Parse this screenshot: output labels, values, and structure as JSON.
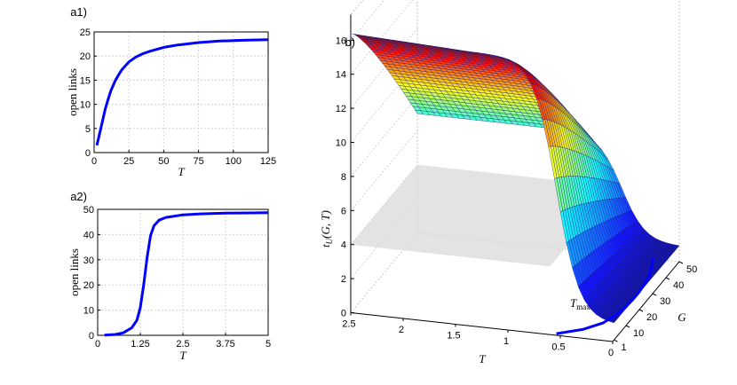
{
  "chart_data": [
    {
      "id": "a1",
      "type": "line",
      "panel_label": "a1)",
      "xlabel": "T",
      "ylabel": "open links",
      "xlim": [
        0,
        125
      ],
      "ylim": [
        0,
        25
      ],
      "xticks": [
        "0",
        "25",
        "50",
        "75",
        "100",
        "125"
      ],
      "yticks": [
        "0",
        "5",
        "10",
        "15",
        "20",
        "25"
      ],
      "grid": true,
      "series": [
        {
          "name": "open links",
          "color": "#0000ff",
          "x": [
            2,
            5,
            8,
            10,
            12,
            15,
            18,
            20,
            25,
            30,
            35,
            40,
            50,
            60,
            75,
            90,
            100,
            110,
            125
          ],
          "y": [
            1.5,
            5.2,
            9.0,
            11.0,
            12.8,
            14.8,
            16.3,
            17.2,
            18.8,
            19.8,
            20.5,
            21.0,
            21.8,
            22.3,
            22.8,
            23.1,
            23.2,
            23.3,
            23.4
          ]
        }
      ]
    },
    {
      "id": "a2",
      "type": "line",
      "panel_label": "a2)",
      "xlabel": "T",
      "ylabel": "open links",
      "xlim": [
        0,
        5
      ],
      "ylim": [
        0,
        50
      ],
      "xticks": [
        "0",
        "1.25",
        "2.5",
        "3.75",
        "5"
      ],
      "yticks": [
        "0",
        "10",
        "20",
        "30",
        "40",
        "50"
      ],
      "grid": true,
      "series": [
        {
          "name": "open links",
          "color": "#0000ff",
          "x": [
            0.2,
            0.5,
            0.75,
            1.0,
            1.15,
            1.25,
            1.35,
            1.45,
            1.55,
            1.65,
            1.8,
            2.0,
            2.5,
            3.0,
            3.75,
            4.5,
            5.0
          ],
          "y": [
            0.1,
            0.3,
            1.0,
            3.0,
            6.0,
            11.0,
            20.0,
            31.0,
            39.5,
            43.5,
            45.7,
            46.8,
            47.8,
            48.2,
            48.5,
            48.6,
            48.7
          ]
        }
      ]
    },
    {
      "id": "b",
      "type": "surface",
      "panel_label": "b)",
      "zlabel": "t_U(G,T)",
      "xlabel": "T",
      "ylabel": "G",
      "xlim": [
        0,
        2.5
      ],
      "ylim": [
        0,
        50
      ],
      "zlim": [
        0,
        16
      ],
      "xticks": [
        "2.5",
        "2",
        "1.5",
        "1",
        "0.5",
        "0"
      ],
      "yticks": [
        "1",
        "10",
        "20",
        "30",
        "40",
        "50"
      ],
      "zticks": [
        "0",
        "2",
        "4",
        "6",
        "8",
        "10",
        "12",
        "14",
        "16"
      ],
      "annotation": "T_max",
      "plane_z": 4,
      "grid": true,
      "surface_note": "Mesh surface, colormap jet by height; max height near G=1, decreasing toward G=50",
      "tmax_curve": {
        "G": [
          1,
          5,
          10,
          15,
          20,
          25,
          30,
          35,
          40,
          45,
          50
        ],
        "T": [
          0.55,
          0.35,
          0.22,
          0.17,
          0.14,
          0.13,
          0.13,
          0.14,
          0.16,
          0.2,
          0.25
        ]
      }
    }
  ]
}
